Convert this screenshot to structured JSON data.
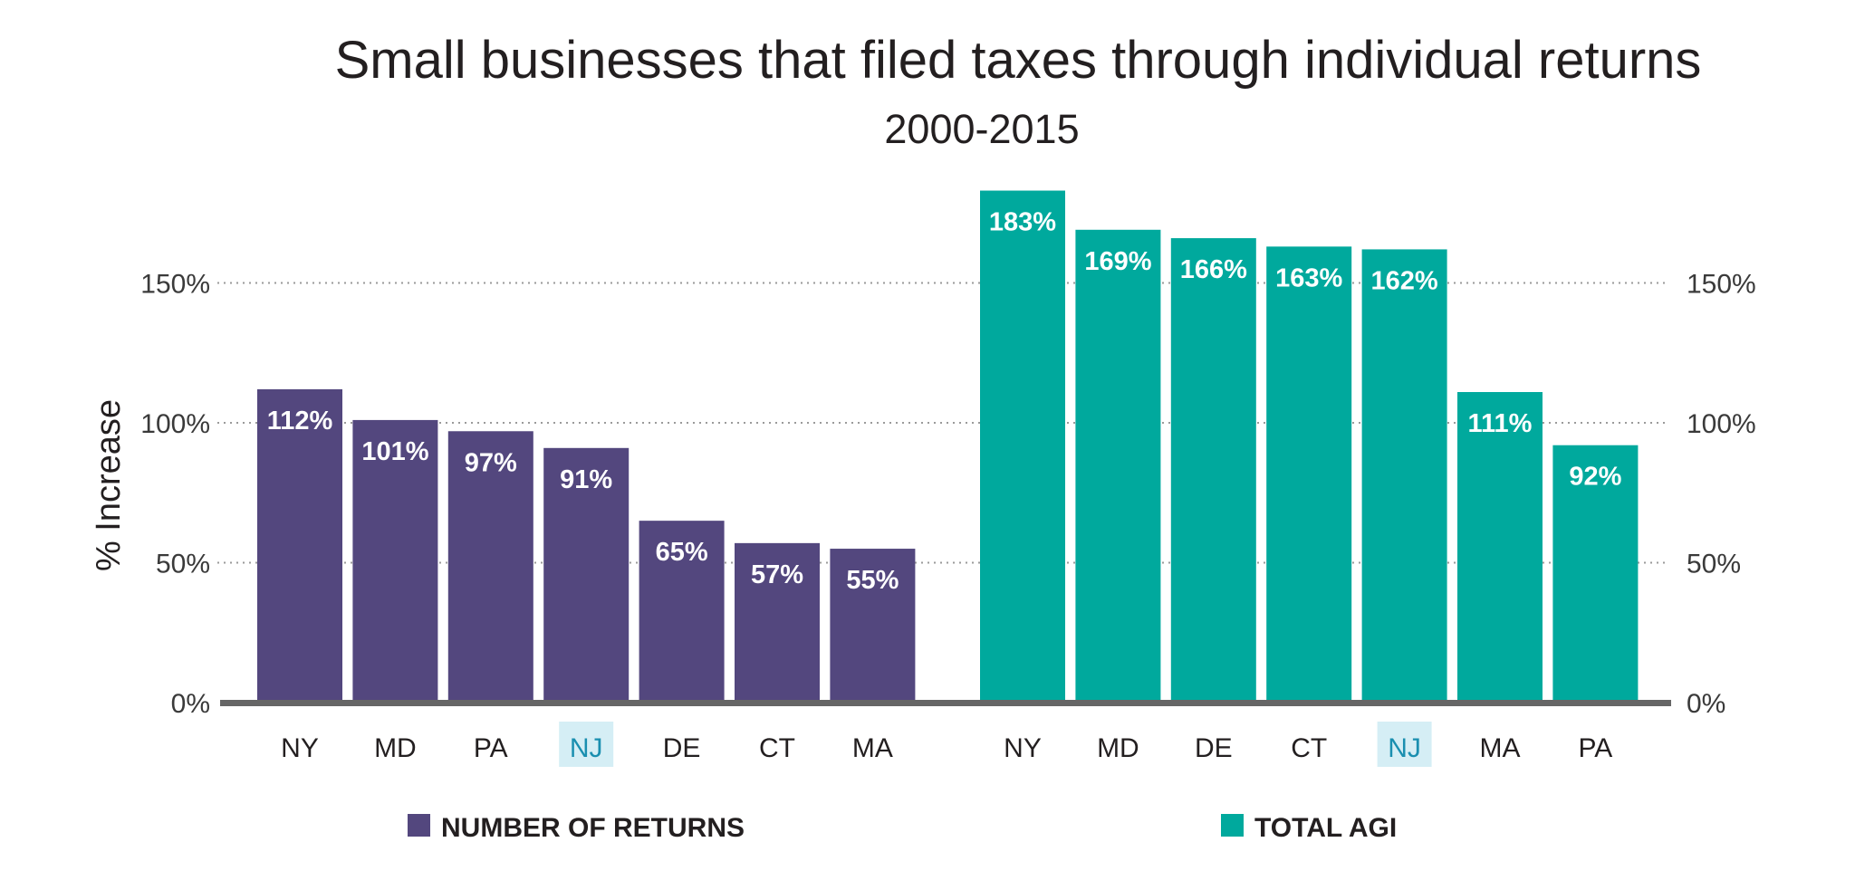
{
  "chart_data": {
    "type": "bar",
    "title": "Small businesses that filed taxes through individual returns",
    "subtitle": "2000-2015",
    "ylabel": "% Increase",
    "ylim": [
      0,
      190
    ],
    "yticks": [
      "0%",
      "50%",
      "100%",
      "150%"
    ],
    "ytick_values": [
      0,
      50,
      100,
      150
    ],
    "grid": "dotted horizontal",
    "highlight_category": "NJ",
    "colors": {
      "returns": "#53477e",
      "agi": "#00a99d",
      "highlight_bg": "#d5eef5",
      "highlight_text": "#1a8fb0",
      "axis": "#666666"
    },
    "series": [
      {
        "name": "NUMBER OF RETURNS",
        "categories": [
          "NY",
          "MD",
          "PA",
          "NJ",
          "DE",
          "CT",
          "MA"
        ],
        "values": [
          112,
          101,
          97,
          91,
          65,
          57,
          55
        ],
        "labels": [
          "112%",
          "101%",
          "97%",
          "91%",
          "65%",
          "57%",
          "55%"
        ]
      },
      {
        "name": "TOTAL AGI",
        "categories": [
          "NY",
          "MD",
          "DE",
          "CT",
          "NJ",
          "MA",
          "PA"
        ],
        "values": [
          183,
          169,
          166,
          163,
          162,
          111,
          92
        ],
        "labels": [
          "183%",
          "169%",
          "166%",
          "163%",
          "162%",
          "111%",
          "92%"
        ]
      }
    ],
    "legend": [
      "NUMBER OF RETURNS",
      "TOTAL AGI"
    ]
  }
}
